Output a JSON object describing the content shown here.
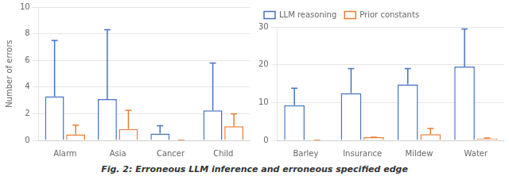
{
  "chart_data": [
    {
      "type": "bar",
      "categories": [
        "Alarm",
        "Asia",
        "Cancer",
        "Child"
      ],
      "series": [
        {
          "name": "LLM reasoning",
          "color": "#4472C4",
          "values": [
            3.3,
            3.1,
            0.5,
            2.25
          ],
          "yerr_upper": [
            4.2,
            5.2,
            0.6,
            3.55
          ]
        },
        {
          "name": "Prior constants",
          "color": "#ED7D31",
          "values": [
            0.45,
            0.85,
            0.0,
            1.05
          ],
          "yerr_upper": [
            0.7,
            1.4,
            0.0,
            0.95
          ]
        }
      ],
      "ylim": [
        0,
        10
      ],
      "yticks": [
        0,
        2,
        4,
        6,
        8,
        10
      ],
      "ylabel": "Number of errors",
      "grid": true
    },
    {
      "type": "bar",
      "categories": [
        "Barley",
        "Insurance",
        "Mildew",
        "Water"
      ],
      "series": [
        {
          "name": "LLM reasoning",
          "color": "#4472C4",
          "values": [
            9.3,
            12.5,
            14.8,
            19.5
          ],
          "yerr_upper": [
            4.5,
            6.5,
            4.2,
            10.0
          ]
        },
        {
          "name": "Prior constants",
          "color": "#ED7D31",
          "values": [
            0.0,
            0.85,
            1.6,
            0.45
          ],
          "yerr_upper": [
            0.0,
            0.0,
            1.55,
            0.2
          ]
        }
      ],
      "ylim": [
        0,
        30
      ],
      "yticks": [
        0,
        10,
        20,
        30
      ],
      "grid": true,
      "legend": "upper left"
    }
  ],
  "caption": "Fig. 2: Erroneous LLM inference and erroneous specified edge"
}
